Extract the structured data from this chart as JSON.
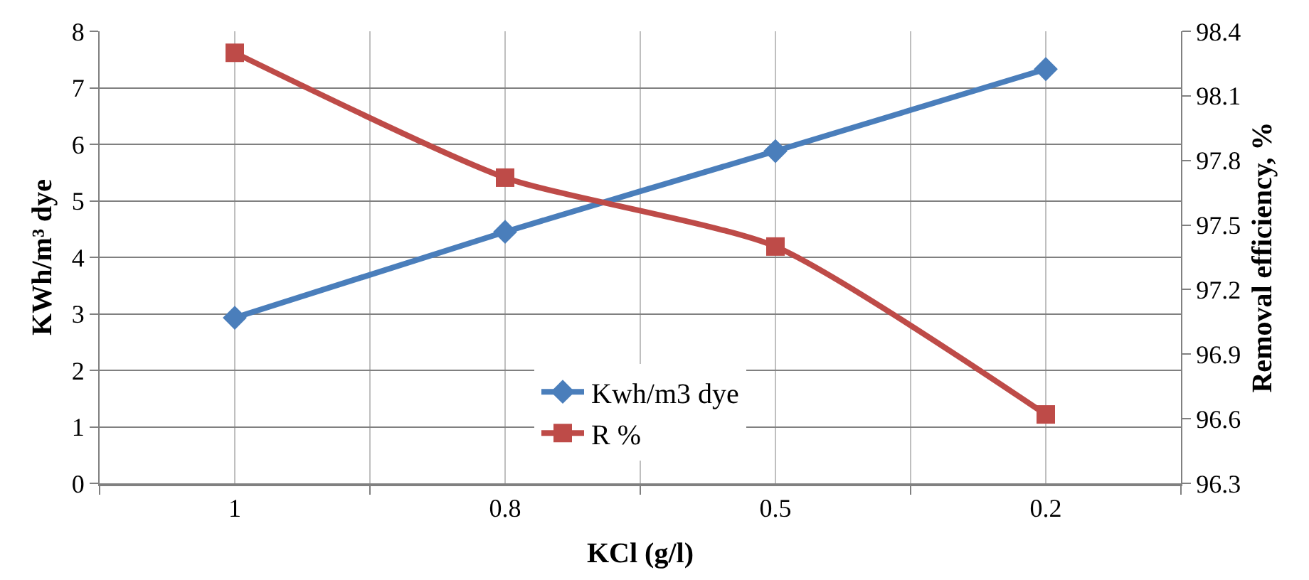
{
  "chart_data": {
    "type": "line",
    "xlabel": "KCl (g/l)",
    "ylabel": "KWh/m³ dye",
    "y2label": "Removal efficiency, %",
    "categories": [
      "1",
      "0.8",
      "0.5",
      "0.2"
    ],
    "series": [
      {
        "name": "Kwh/m3 dye",
        "color": "#4a7ebb",
        "values": [
          2.93,
          4.45,
          5.88,
          7.33
        ],
        "marker": "diamond"
      },
      {
        "name": "R %",
        "color": "#be4b48",
        "values": [
          98.3,
          97.72,
          97.4,
          96.62
        ],
        "marker": "square",
        "axis": "y2"
      }
    ],
    "ylim": [
      0,
      8
    ],
    "yticks": [
      0,
      1,
      2,
      3,
      4,
      5,
      6,
      7,
      8
    ],
    "y2lim": [
      96.3,
      98.4
    ],
    "y2ticks": [
      {
        "value": 96.3,
        "label": "96.3"
      },
      {
        "value": 96.6,
        "label": "96.6"
      },
      {
        "value": 96.9,
        "label": "96.9"
      },
      {
        "value": 97.2,
        "label": "97.2"
      },
      {
        "value": 97.5,
        "label": "97.5"
      },
      {
        "value": 97.8,
        "label": "97.8"
      },
      {
        "value": 98.1,
        "label": "98.1"
      },
      {
        "value": 98.4,
        "label": "98.4"
      }
    ],
    "grid": true,
    "legend": "bottom"
  }
}
